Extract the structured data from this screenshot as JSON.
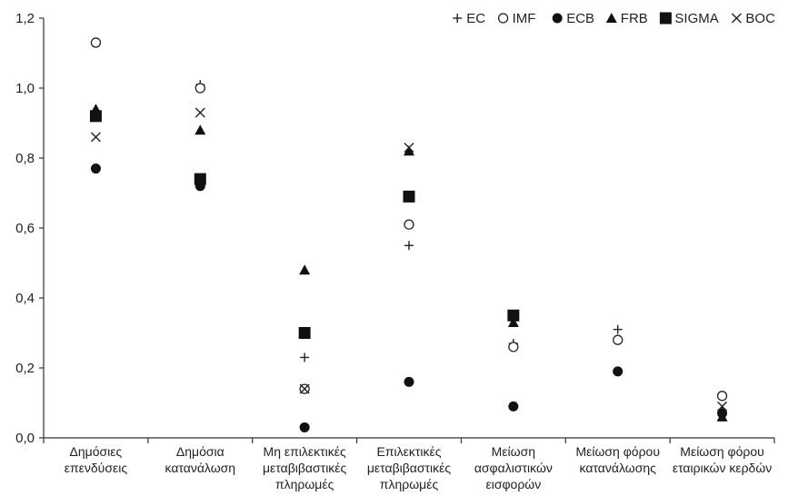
{
  "chart_data": {
    "type": "scatter",
    "ylim": [
      0,
      1.2
    ],
    "yticks": [
      "0,0",
      "0,2",
      "0,4",
      "0,6",
      "0,8",
      "1,0",
      "1,2"
    ],
    "ytick_values": [
      0,
      0.2,
      0.4,
      0.6,
      0.8,
      1.0,
      1.2
    ],
    "grid": false,
    "legend_position": "top-right",
    "categories": [
      [
        "Δημόσιες",
        "επενδύσεις"
      ],
      [
        "Δημόσια",
        "κατανάλωση"
      ],
      [
        "Μη επιλεκτικές",
        "μεταβιβαστικές",
        "πληρωμές"
      ],
      [
        "Επιλεκτικές",
        "μεταβιβαστικές",
        "πληρωμές"
      ],
      [
        "Μείωση",
        "ασφαλιστικών",
        "εισφορών"
      ],
      [
        "Μείωση φόρου",
        "κατανάλωσης"
      ],
      [
        "Μείωση φόρου",
        "εταιρικών κερδών"
      ]
    ],
    "series": [
      {
        "name": "EC",
        "marker": "plus",
        "values": [
          null,
          1.01,
          0.23,
          0.55,
          0.27,
          0.31,
          0.08
        ]
      },
      {
        "name": "IMF",
        "marker": "circle-open",
        "values": [
          1.13,
          1.0,
          0.14,
          0.61,
          0.26,
          0.28,
          0.12
        ]
      },
      {
        "name": "ECB",
        "marker": "circle-filled",
        "values": [
          0.77,
          0.72,
          0.03,
          0.16,
          0.09,
          0.19,
          0.07
        ]
      },
      {
        "name": "FRB",
        "marker": "triangle",
        "values": [
          0.94,
          0.88,
          0.48,
          0.82,
          0.33,
          null,
          0.06
        ]
      },
      {
        "name": "SIGMA",
        "marker": "square",
        "values": [
          0.92,
          0.74,
          0.3,
          0.69,
          0.35,
          null,
          null
        ]
      },
      {
        "name": "BOC",
        "marker": "cross",
        "values": [
          0.86,
          0.93,
          0.14,
          0.83,
          null,
          null,
          0.09
        ]
      }
    ]
  }
}
